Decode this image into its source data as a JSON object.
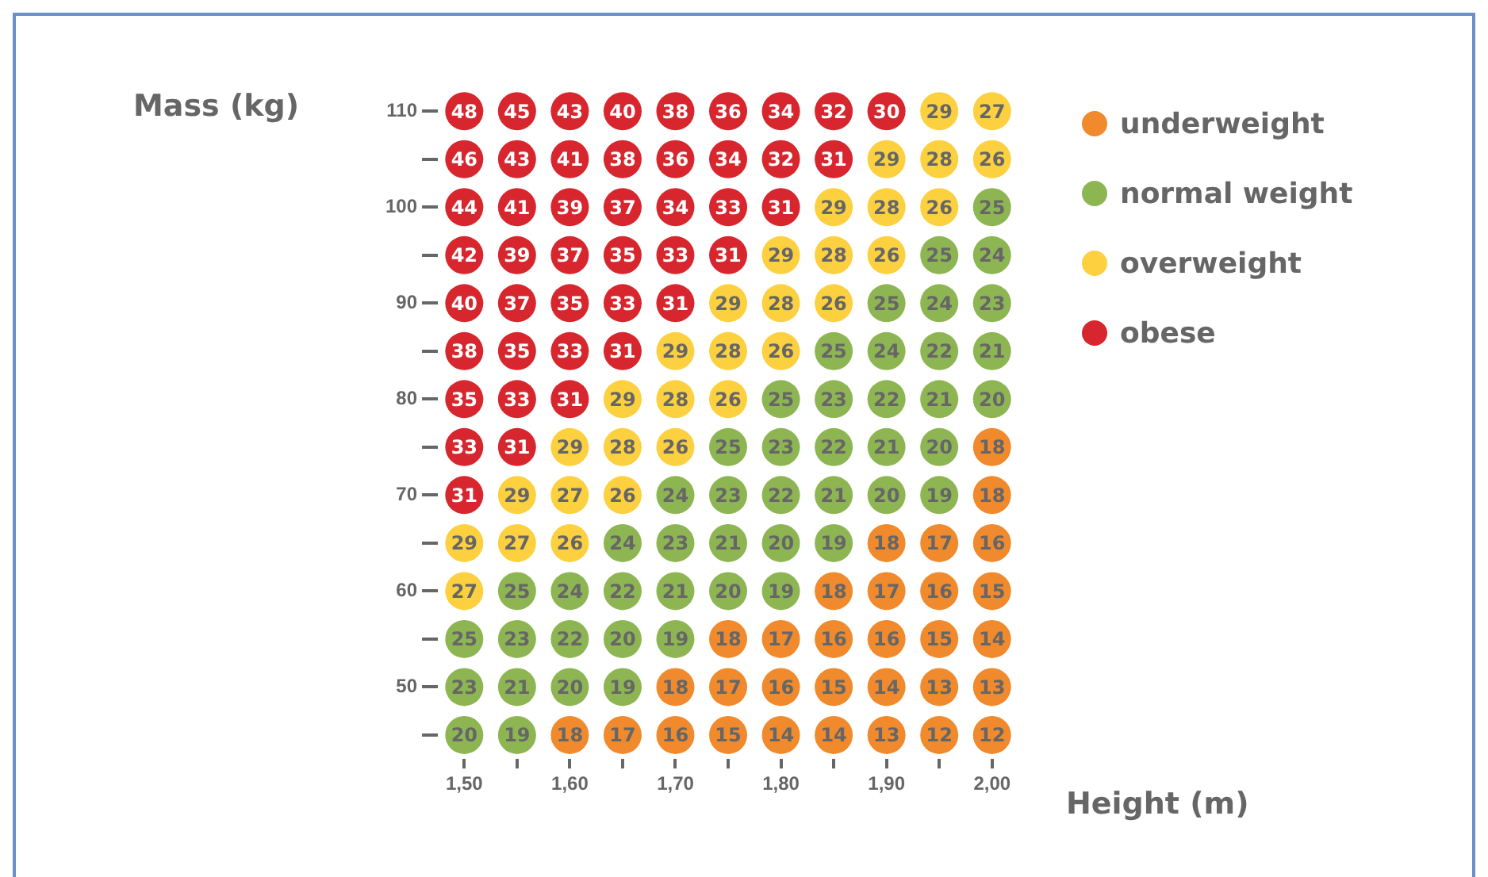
{
  "chart_data": {
    "type": "heatmap",
    "xlabel": "Height (m)",
    "ylabel": "Mass (kg)",
    "categories": [
      "1,50",
      null,
      "1,60",
      null,
      "1,70",
      null,
      "1,80",
      null,
      "1,90",
      null,
      "2,00"
    ],
    "y_categories": [
      "110",
      null,
      "100",
      null,
      "90",
      null,
      "80",
      null,
      "70",
      null,
      "60",
      null,
      "50",
      null
    ],
    "cells": [
      [
        48,
        45,
        43,
        40,
        38,
        36,
        34,
        32,
        30,
        29,
        27
      ],
      [
        46,
        43,
        41,
        38,
        36,
        34,
        32,
        31,
        29,
        28,
        26
      ],
      [
        44,
        41,
        39,
        37,
        34,
        33,
        31,
        29,
        28,
        26,
        25
      ],
      [
        42,
        39,
        37,
        35,
        33,
        31,
        29,
        28,
        26,
        25,
        24
      ],
      [
        40,
        37,
        35,
        33,
        31,
        29,
        28,
        26,
        25,
        24,
        23
      ],
      [
        38,
        35,
        33,
        31,
        29,
        28,
        26,
        25,
        24,
        22,
        21
      ],
      [
        35,
        33,
        31,
        29,
        28,
        26,
        25,
        23,
        22,
        21,
        20
      ],
      [
        33,
        31,
        29,
        28,
        26,
        25,
        23,
        22,
        21,
        20,
        18
      ],
      [
        31,
        29,
        27,
        26,
        24,
        23,
        22,
        21,
        20,
        19,
        18
      ],
      [
        29,
        27,
        26,
        24,
        23,
        21,
        20,
        19,
        18,
        17,
        16
      ],
      [
        27,
        25,
        24,
        22,
        21,
        20,
        19,
        18,
        17,
        16,
        15
      ],
      [
        25,
        23,
        22,
        20,
        19,
        18,
        17,
        16,
        16,
        15,
        14
      ],
      [
        23,
        21,
        20,
        19,
        18,
        17,
        16,
        15,
        14,
        13,
        13
      ],
      [
        20,
        19,
        18,
        17,
        16,
        15,
        14,
        14,
        13,
        12,
        12
      ]
    ],
    "colors": [
      [
        "#d7262d",
        "#d7262d",
        "#d7262d",
        "#d7262d",
        "#d7262d",
        "#d7262d",
        "#d7262d",
        "#d7262d",
        "#d7262d",
        "#fdd03f",
        "#fdd03f"
      ],
      [
        "#d7262d",
        "#d7262d",
        "#d7262d",
        "#d7262d",
        "#d7262d",
        "#d7262d",
        "#d7262d",
        "#d7262d",
        "#fdd03f",
        "#fdd03f",
        "#fdd03f"
      ],
      [
        "#d7262d",
        "#d7262d",
        "#d7262d",
        "#d7262d",
        "#d7262d",
        "#d7262d",
        "#d7262d",
        "#fdd03f",
        "#fdd03f",
        "#fdd03f",
        "#8db652"
      ],
      [
        "#d7262d",
        "#d7262d",
        "#d7262d",
        "#d7262d",
        "#d7262d",
        "#d7262d",
        "#fdd03f",
        "#fdd03f",
        "#fdd03f",
        "#8db652",
        "#8db652"
      ],
      [
        "#d7262d",
        "#d7262d",
        "#d7262d",
        "#d7262d",
        "#d7262d",
        "#fdd03f",
        "#fdd03f",
        "#fdd03f",
        "#8db652",
        "#8db652",
        "#8db652"
      ],
      [
        "#d7262d",
        "#d7262d",
        "#d7262d",
        "#d7262d",
        "#fdd03f",
        "#fdd03f",
        "#fdd03f",
        "#8db652",
        "#8db652",
        "#8db652",
        "#8db652"
      ],
      [
        "#d7262d",
        "#d7262d",
        "#d7262d",
        "#fdd03f",
        "#fdd03f",
        "#fdd03f",
        "#8db652",
        "#8db652",
        "#8db652",
        "#8db652",
        "#8db652"
      ],
      [
        "#d7262d",
        "#d7262d",
        "#fdd03f",
        "#fdd03f",
        "#fdd03f",
        "#8db652",
        "#8db652",
        "#8db652",
        "#8db652",
        "#8db652",
        "#f08a2c"
      ],
      [
        "#d7262d",
        "#fdd03f",
        "#fdd03f",
        "#fdd03f",
        "#8db652",
        "#8db652",
        "#8db652",
        "#8db652",
        "#8db652",
        "#8db652",
        "#f08a2c"
      ],
      [
        "#fdd03f",
        "#fdd03f",
        "#fdd03f",
        "#8db652",
        "#8db652",
        "#8db652",
        "#8db652",
        "#8db652",
        "#f08a2c",
        "#f08a2c",
        "#f08a2c"
      ],
      [
        "#fdd03f",
        "#8db652",
        "#8db652",
        "#8db652",
        "#8db652",
        "#8db652",
        "#8db652",
        "#f08a2c",
        "#f08a2c",
        "#f08a2c",
        "#f08a2c"
      ],
      [
        "#8db652",
        "#8db652",
        "#8db652",
        "#8db652",
        "#8db652",
        "#f08a2c",
        "#f08a2c",
        "#f08a2c",
        "#f08a2c",
        "#f08a2c",
        "#f08a2c"
      ],
      [
        "#8db652",
        "#8db652",
        "#8db652",
        "#8db652",
        "#f08a2c",
        "#f08a2c",
        "#f08a2c",
        "#f08a2c",
        "#f08a2c",
        "#f08a2c",
        "#f08a2c"
      ],
      [
        "#8db652",
        "#8db652",
        "#f08a2c",
        "#f08a2c",
        "#f08a2c",
        "#f08a2c",
        "#f08a2c",
        "#f08a2c",
        "#f08a2c",
        "#f08a2c",
        "#f08a2c"
      ]
    ],
    "series": [
      {
        "name": "underweight",
        "color": "#f08a2c",
        "values": [
          null,
          null,
          null,
          null,
          null,
          null,
          null,
          null,
          null,
          null,
          null
        ]
      },
      {
        "name": "normal weight",
        "color": "#8db652",
        "values": [
          null,
          null,
          null,
          null,
          null,
          null,
          null,
          null,
          null,
          null,
          null
        ]
      },
      {
        "name": "overweight",
        "color": "#fdd03f",
        "values": [
          null,
          null,
          null,
          null,
          null,
          null,
          null,
          null,
          null,
          null,
          null
        ]
      },
      {
        "name": "obese",
        "color": "#d7262d",
        "values": [
          null,
          null,
          null,
          null,
          null,
          null,
          null,
          null,
          null,
          null,
          null
        ]
      }
    ],
    "legend": "right",
    "data_labels": true
  }
}
